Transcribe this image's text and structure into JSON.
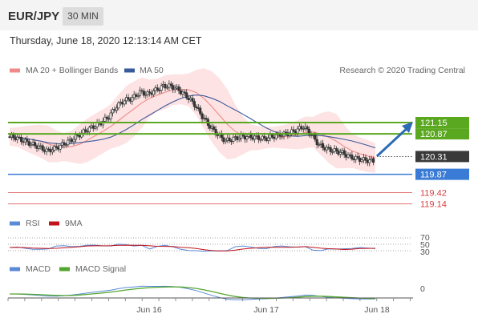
{
  "header": {
    "pair": "EUR/JPY",
    "timeframe": "30 MIN",
    "datetime": "Thursday, June 18, 2020 12:13:14 AM CET"
  },
  "legend": {
    "ma20": "MA 20 + Bollinger Bands",
    "ma50": "MA 50",
    "copyright": "Research © 2020 Trading Central",
    "rsi": "RSI",
    "rsi_ma": "9MA",
    "macd": "MACD",
    "macd_signal": "MACD Signal"
  },
  "colors": {
    "ma20": "#f08a8a",
    "ma50": "#3a5a9c",
    "bands_fill": "#fde3e3",
    "resistance": "#5aa820",
    "pivot_label": "#3a3a3a",
    "support1": "#3a7bd5",
    "support_other": "#d64040",
    "arrow": "#2e6bb5",
    "candle": "#333333",
    "rsi": "#5b8ad8",
    "rsi_ma": "#c0141a",
    "macd": "#5b8ad8",
    "macd_signal": "#55a630"
  },
  "chart_data": {
    "type": "candlestick",
    "x_ticks": [
      "Jun 16",
      "Jun 17",
      "Jun 18"
    ],
    "price_levels": [
      {
        "value": 121.15,
        "label": "121.15",
        "kind": "resistance"
      },
      {
        "value": 120.87,
        "label": "120.87",
        "kind": "resistance"
      },
      {
        "value": 120.31,
        "label": "120.31",
        "kind": "pivot"
      },
      {
        "value": 119.87,
        "label": "119.87",
        "kind": "support"
      },
      {
        "value": 119.42,
        "label": "119.42",
        "kind": "support"
      },
      {
        "value": 119.14,
        "label": "119.14",
        "kind": "support"
      }
    ],
    "close_series": [
      120.8,
      120.78,
      120.7,
      120.62,
      120.55,
      120.45,
      120.5,
      120.6,
      120.7,
      120.82,
      120.95,
      121.05,
      121.15,
      121.3,
      121.55,
      121.7,
      121.75,
      121.9,
      121.85,
      121.95,
      122.05,
      122.05,
      121.95,
      121.8,
      121.6,
      121.3,
      121.05,
      120.85,
      120.7,
      120.75,
      120.8,
      120.8,
      120.78,
      120.75,
      120.8,
      120.85,
      120.88,
      120.95,
      121.05,
      120.85,
      120.6,
      120.5,
      120.45,
      120.4,
      120.3,
      120.25,
      120.22,
      120.2
    ],
    "rsi": {
      "levels": [
        70,
        50,
        30
      ]
    },
    "macd": {
      "levels": [
        0
      ]
    }
  }
}
